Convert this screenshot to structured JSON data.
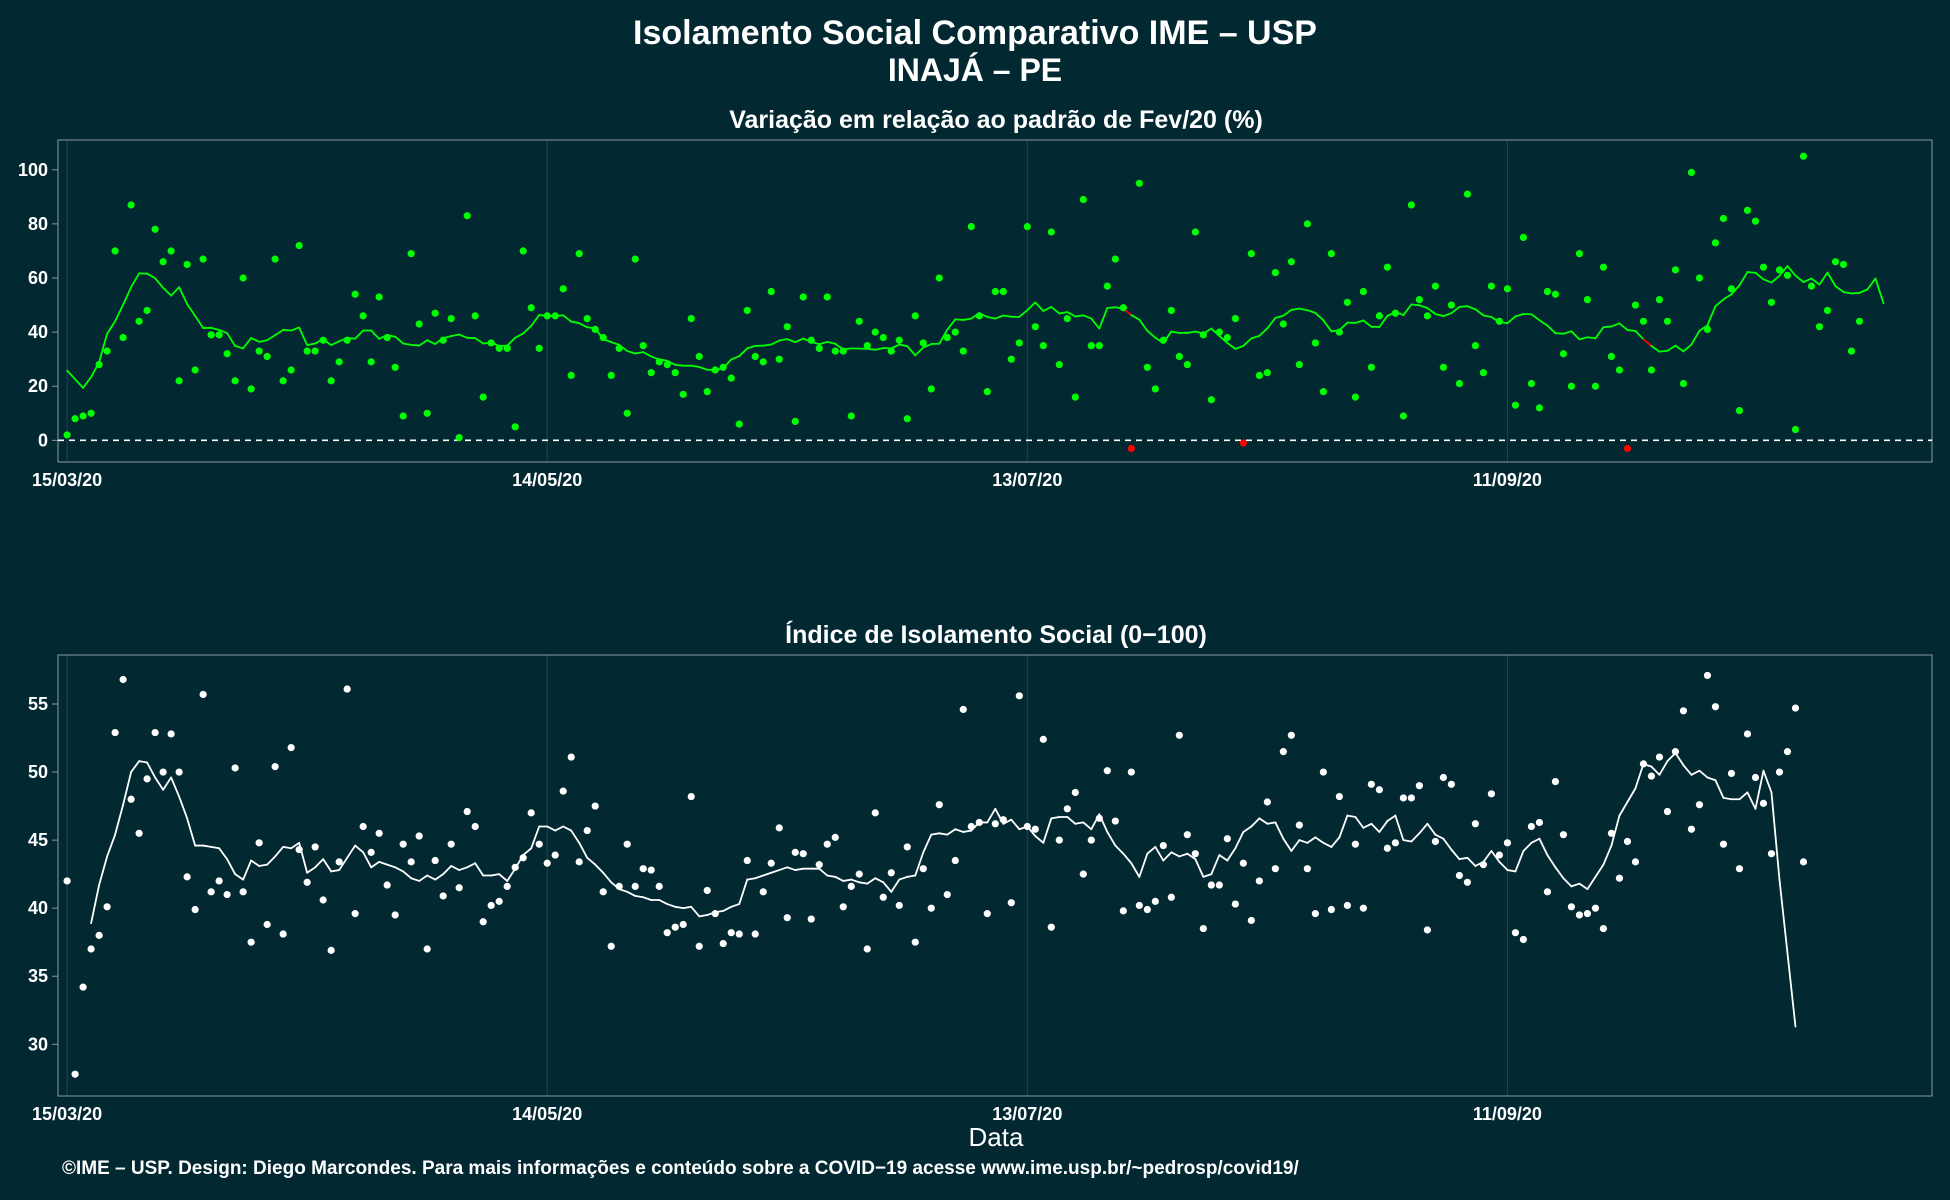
{
  "header": {
    "title": "Isolamento Social Comparativo IME – USP",
    "subtitle": "INAJÁ – PE"
  },
  "footer": "©IME – USP. Design: Diego Marcondes. Para mais informações e conteúdo sobre a COVID−19 acesse www.ime.usp.br/~pedrosp/covid19/",
  "colors": {
    "background": "#022832",
    "panel_border": "#8a9aa0",
    "grid": "#1e4650",
    "variation_positive": "#00ff00",
    "variation_negative": "#ff0000",
    "index_points": "#ffffff"
  },
  "chart_data": [
    {
      "type": "scatter",
      "title": "Variação em relação ao padrão de Fev/20 (%)",
      "xlabel": "",
      "ylabel": "",
      "x_start": "15/03/20",
      "x_ticks": [
        {
          "day": 0,
          "label": "15/03/20"
        },
        {
          "day": 60,
          "label": "14/05/20"
        },
        {
          "day": 120,
          "label": "13/07/20"
        },
        {
          "day": 180,
          "label": "11/09/20"
        }
      ],
      "ylim": [
        -8,
        111
      ],
      "y_ticks": [
        0,
        20,
        40,
        60,
        80,
        100
      ],
      "reference_line": 0,
      "points": [
        2,
        8,
        9,
        10,
        28,
        33,
        70,
        38,
        87,
        44,
        48,
        78,
        66,
        70,
        22,
        65,
        26,
        67,
        39,
        39,
        32,
        22,
        60,
        19,
        33,
        31,
        67,
        22,
        26,
        72,
        33,
        33,
        37,
        22,
        29,
        37,
        54,
        46,
        29,
        53,
        38,
        27,
        9,
        69,
        43,
        10,
        47,
        37,
        45,
        1,
        83,
        46,
        16,
        36,
        34,
        34,
        5,
        70,
        49,
        34,
        46,
        46,
        56,
        24,
        69,
        45,
        41,
        38,
        24,
        34,
        10,
        67,
        35,
        25,
        29,
        28,
        25,
        17,
        45,
        31,
        18,
        26,
        27,
        23,
        6,
        48,
        31,
        29,
        55,
        30,
        42,
        7,
        53,
        37,
        34,
        53,
        33,
        33,
        9,
        44,
        35,
        40,
        38,
        33,
        37,
        8,
        46,
        36,
        19,
        60,
        38,
        40,
        33,
        79,
        46,
        18,
        55,
        55,
        30,
        36,
        79,
        42,
        35,
        77,
        28,
        45,
        16,
        89,
        35,
        35,
        57,
        67,
        49,
        -3,
        95,
        27,
        19,
        37,
        48,
        31,
        28,
        77,
        39,
        15,
        40,
        38,
        45,
        -1,
        69,
        24,
        25,
        62,
        43,
        66,
        28,
        80,
        36,
        18,
        69,
        40,
        51,
        16,
        55,
        27,
        46,
        64,
        47,
        9,
        87,
        52,
        46,
        57,
        27,
        50,
        21,
        91,
        35,
        25,
        57,
        44,
        56,
        13,
        75,
        21,
        12,
        55,
        54,
        32,
        20,
        69,
        52,
        20,
        64,
        31,
        26,
        -3,
        50,
        44,
        26,
        52,
        44,
        63,
        21,
        99,
        60,
        41,
        73,
        82,
        56,
        11,
        85,
        81,
        64,
        51,
        63,
        61,
        4,
        105,
        57,
        42,
        48,
        66,
        65,
        33,
        44
      ],
      "moving_average": [
        25.8,
        22.6,
        19.4,
        23.4,
        28.8,
        39.4,
        44.0,
        50.1,
        56.6,
        61.7,
        61.6,
        59.9,
        56.4,
        53.5,
        56.6,
        50.4,
        46.0,
        41.5,
        41.6,
        40.8,
        39.6,
        34.9,
        34.0,
        37.8,
        36.4,
        37.0,
        38.9,
        40.8,
        40.6,
        41.7,
        35.2,
        35.8,
        37.4,
        35.2,
        36.6,
        37.8,
        37.6,
        40.6,
        40.6,
        37.5,
        38.9,
        38.3,
        35.8,
        35.3,
        35.0,
        37.0,
        35.6,
        37.8,
        38.5,
        39.1,
        37.9,
        37.8,
        35.8,
        36.1,
        34.9,
        35.0,
        37.9,
        39.5,
        42.3,
        46.3,
        46.0,
        46.1,
        46.2,
        43.9,
        43.3,
        41.8,
        41.4,
        37.4,
        36.3,
        35.3,
        33.0,
        32.1,
        32.6,
        31.0,
        29.9,
        29.4,
        27.9,
        27.6,
        27.6,
        27.1,
        26.1,
        26.0,
        26.7,
        29.9,
        31.1,
        34.0,
        34.9,
        35.0,
        35.4,
        36.9,
        37.4,
        36.3,
        37.6,
        36.4,
        35.5,
        36.4,
        35.7,
        33.6,
        34.0,
        33.9,
        33.8,
        33.5,
        34.1,
        34.0,
        35.4,
        34.8,
        31.4,
        34.3,
        35.6,
        35.7,
        40.9,
        44.7,
        44.5,
        45.0,
        47.0,
        45.6,
        45.0,
        46.1,
        45.7,
        45.6,
        48.1,
        51.0,
        47.8,
        49.3,
        46.9,
        47.4,
        45.8,
        46.2,
        45.0,
        41.3,
        48.9,
        49.2,
        48.6,
        46.3,
        44.6,
        40.5,
        37.9,
        36.0,
        40.2,
        39.7,
        39.7,
        40.2,
        39.5,
        41.3,
        38.6,
        36.0,
        33.8,
        34.9,
        37.7,
        38.6,
        41.4,
        45.2,
        46.1,
        48.2,
        48.7,
        48.1,
        47.1,
        44.4,
        40.3,
        40.7,
        43.5,
        43.4,
        44.3,
        42.0,
        41.9,
        46.0,
        47.4,
        46.3,
        50.2,
        49.9,
        48.9,
        46.7,
        45.9,
        47.0,
        49.3,
        49.6,
        48.4,
        46.2,
        45.6,
        43.7,
        43.3,
        45.8,
        46.7,
        46.6,
        44.4,
        42.4,
        39.6,
        39.4,
        40.3,
        37.3,
        38.1,
        37.7,
        41.8,
        42.1,
        43.2,
        40.8,
        40.4,
        37.4,
        34.9,
        32.8,
        33.1,
        35.0,
        32.9,
        35.4,
        40.5,
        42.5,
        49.6,
        52.1,
        54.0,
        57.3,
        62.2,
        61.9,
        59.5,
        58.3,
        60.8,
        64.4,
        60.9,
        58.5,
        59.8,
        57.6,
        62.0,
        57.0,
        54.8,
        54.3,
        54.5,
        55.8,
        59.8,
        50.7
      ]
    },
    {
      "type": "scatter",
      "title": "Índice de Isolamento Social (0−100)",
      "xlabel": "Data",
      "ylabel": "",
      "x_start": "15/03/20",
      "x_ticks": [
        {
          "day": 0,
          "label": "15/03/20"
        },
        {
          "day": 60,
          "label": "14/05/20"
        },
        {
          "day": 120,
          "label": "13/07/20"
        },
        {
          "day": 180,
          "label": "11/09/20"
        }
      ],
      "ylim": [
        26.2,
        58.6
      ],
      "y_ticks": [
        30,
        35,
        40,
        45,
        50,
        55
      ],
      "points": [
        42.0,
        27.8,
        34.2,
        37.0,
        38.0,
        40.1,
        52.9,
        56.8,
        48.0,
        45.5,
        49.5,
        52.9,
        50.0,
        52.8,
        50.0,
        42.3,
        39.9,
        55.7,
        41.2,
        42.0,
        41.0,
        50.3,
        41.2,
        37.5,
        44.8,
        38.8,
        50.4,
        38.1,
        51.8,
        44.3,
        41.9,
        44.5,
        40.6,
        36.9,
        43.4,
        56.1,
        39.6,
        46.0,
        44.1,
        45.5,
        41.7,
        39.5,
        44.7,
        43.4,
        45.3,
        37.0,
        43.5,
        40.9,
        44.7,
        41.5,
        47.1,
        46.0,
        39.0,
        40.2,
        40.5,
        41.6,
        43.0,
        43.7,
        47.0,
        44.7,
        43.3,
        43.9,
        48.6,
        51.1,
        43.4,
        45.7,
        47.5,
        41.2,
        37.2,
        41.6,
        44.7,
        41.6,
        42.9,
        42.8,
        41.6,
        38.2,
        38.6,
        38.8,
        48.2,
        37.2,
        41.3,
        39.6,
        37.4,
        38.2,
        38.1,
        43.5,
        38.1,
        41.2,
        43.3,
        45.9,
        39.3,
        44.1,
        44.0,
        39.2,
        43.2,
        44.7,
        45.2,
        40.1,
        41.6,
        42.5,
        37.0,
        47.0,
        40.8,
        42.6,
        40.2,
        44.5,
        37.5,
        42.9,
        40.0,
        47.6,
        41.0,
        43.5,
        54.6,
        46.0,
        46.3,
        39.6,
        46.2,
        46.5,
        40.4,
        55.6,
        46.0,
        45.8,
        52.4,
        38.6,
        45.0,
        47.3,
        48.5,
        42.5,
        45.0,
        46.6,
        50.1,
        46.4,
        39.8,
        50.0,
        40.2,
        39.9,
        40.5,
        44.6,
        40.8,
        52.7,
        45.4,
        44.0,
        38.5,
        41.7,
        41.7,
        45.1,
        40.3,
        43.3,
        39.1,
        42.0,
        47.8,
        42.9,
        51.5,
        52.7,
        46.1,
        42.9,
        39.6,
        50.0,
        39.9,
        48.2,
        40.2,
        44.7,
        40.0,
        49.1,
        48.7,
        44.4,
        44.8,
        48.1,
        48.1,
        49.0,
        38.4,
        44.9,
        49.6,
        49.1,
        42.4,
        41.9,
        46.2,
        43.2,
        48.4,
        43.9,
        44.8,
        38.2,
        37.7,
        46.0,
        46.3,
        41.2,
        49.3,
        45.4,
        40.1,
        39.5,
        39.6,
        40.0,
        38.5,
        45.5,
        42.2,
        44.9,
        43.4,
        50.6,
        49.7,
        51.1,
        47.1,
        51.5,
        54.5,
        45.8,
        47.6,
        57.1,
        54.8,
        44.7,
        49.9,
        42.9,
        52.8,
        49.6,
        47.7,
        44.0,
        50.0,
        51.5,
        54.7,
        43.4
      ],
      "moving_average": [
        null,
        null,
        null,
        38.9,
        41.7,
        43.8,
        45.4,
        47.6,
        50.0,
        50.8,
        50.7,
        49.6,
        48.7,
        49.6,
        48.2,
        46.6,
        44.6,
        44.6,
        44.5,
        44.4,
        43.6,
        42.5,
        42.1,
        43.5,
        43.1,
        43.2,
        43.8,
        44.5,
        44.4,
        44.8,
        42.6,
        43.0,
        43.6,
        42.7,
        42.8,
        43.7,
        44.6,
        44.1,
        43.0,
        43.4,
        43.2,
        43.0,
        42.7,
        42.2,
        42.0,
        42.4,
        42.1,
        42.5,
        43.1,
        42.8,
        43.0,
        43.3,
        42.4,
        42.4,
        42.5,
        42.0,
        42.9,
        43.9,
        44.4,
        46.0,
        46.0,
        45.7,
        46.0,
        45.7,
        44.8,
        43.7,
        43.2,
        42.6,
        41.9,
        41.4,
        41.2,
        40.9,
        40.8,
        40.6,
        40.6,
        40.3,
        40.1,
        40.0,
        40.1,
        39.4,
        39.5,
        39.7,
        39.8,
        40.1,
        40.3,
        42.1,
        42.2,
        42.4,
        42.6,
        42.8,
        43.0,
        42.8,
        42.9,
        42.9,
        42.9,
        42.4,
        42.3,
        42.0,
        42.1,
        41.9,
        41.8,
        42.2,
        41.9,
        41.2,
        42.1,
        42.3,
        42.4,
        44.1,
        45.4,
        45.5,
        45.4,
        45.8,
        45.6,
        45.7,
        46.3,
        46.3,
        47.3,
        46.2,
        46.5,
        45.8,
        46.0,
        45.3,
        44.8,
        46.6,
        46.7,
        46.7,
        46.2,
        46.3,
        45.8,
        46.9,
        45.6,
        44.6,
        44.0,
        43.3,
        42.3,
        44.0,
        44.5,
        43.5,
        44.1,
        43.8,
        44.0,
        43.6,
        42.3,
        42.5,
        43.9,
        43.5,
        44.4,
        45.6,
        46.0,
        46.6,
        46.2,
        46.3,
        45.1,
        44.2,
        45.0,
        44.8,
        45.2,
        44.8,
        44.5,
        45.2,
        46.8,
        46.7,
        45.9,
        46.2,
        45.6,
        46.4,
        46.8,
        45.0,
        44.9,
        45.5,
        46.2,
        45.4,
        45.1,
        44.3,
        43.6,
        43.7,
        43.1,
        43.4,
        44.2,
        43.4,
        42.8,
        42.7,
        44.2,
        44.8,
        45.1,
        43.9,
        43.0,
        42.2,
        41.6,
        41.8,
        41.4,
        42.3,
        43.2,
        44.6,
        46.8,
        47.8,
        48.8,
        50.6,
        50.4,
        49.8,
        50.8,
        51.4,
        50.5,
        49.8,
        50.1,
        49.6,
        49.4,
        48.1,
        48.0,
        48.0,
        48.5,
        47.3,
        50.1,
        48.5,
        42.1,
        36.7,
        31.3
      ]
    }
  ]
}
